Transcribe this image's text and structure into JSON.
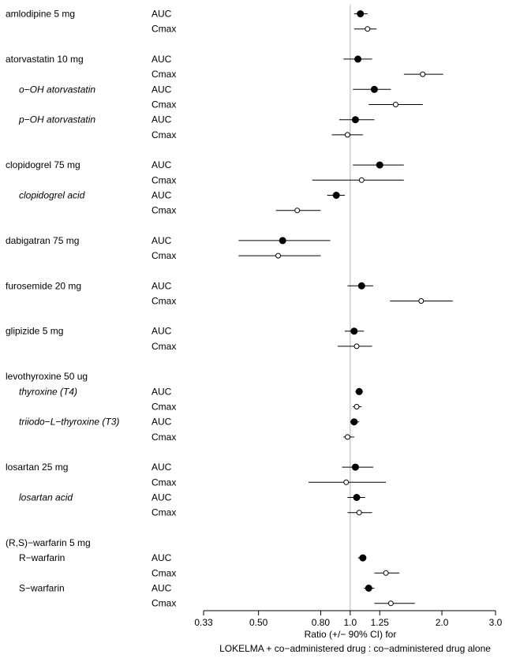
{
  "chart_data": {
    "type": "forest",
    "xscale": "log",
    "xlim": [
      0.33,
      3.0
    ],
    "xticks": [
      "0.33",
      "0.50",
      "0.80",
      "1.0",
      "1.25",
      "2.0",
      "3.0"
    ],
    "reference_line": 1.0,
    "xlabel_line1": "Ratio (+/− 90% CI) for",
    "xlabel_line2": "LOKELMA + co−administered drug : co−administered drug alone",
    "rows": [
      {
        "label": "amlodipine 5 mg",
        "italic": false,
        "indent": false,
        "metric": "AUC",
        "est": 1.08,
        "lo": 1.03,
        "hi": 1.14
      },
      {
        "label": "",
        "italic": false,
        "indent": false,
        "metric": "Cmax",
        "est": 1.14,
        "lo": 1.03,
        "hi": 1.22
      },
      {
        "label": "atorvastatin 10 mg",
        "italic": false,
        "indent": false,
        "metric": "AUC",
        "est": 1.06,
        "lo": 0.95,
        "hi": 1.18
      },
      {
        "label": "",
        "italic": false,
        "indent": false,
        "metric": "Cmax",
        "est": 1.73,
        "lo": 1.5,
        "hi": 2.02
      },
      {
        "label": "o−OH atorvastatin",
        "italic": true,
        "indent": true,
        "metric": "AUC",
        "est": 1.2,
        "lo": 1.02,
        "hi": 1.36
      },
      {
        "label": "",
        "italic": false,
        "indent": false,
        "metric": "Cmax",
        "est": 1.41,
        "lo": 1.15,
        "hi": 1.73
      },
      {
        "label": "p−OH atorvastatin",
        "italic": true,
        "indent": true,
        "metric": "AUC",
        "est": 1.04,
        "lo": 0.92,
        "hi": 1.2
      },
      {
        "label": "",
        "italic": false,
        "indent": false,
        "metric": "Cmax",
        "est": 0.98,
        "lo": 0.87,
        "hi": 1.1
      },
      {
        "label": "clopidogrel 75 mg",
        "italic": false,
        "indent": false,
        "metric": "AUC",
        "est": 1.25,
        "lo": 1.02,
        "hi": 1.5
      },
      {
        "label": "",
        "italic": false,
        "indent": false,
        "metric": "Cmax",
        "est": 1.09,
        "lo": 0.75,
        "hi": 1.5
      },
      {
        "label": "clopidogrel acid",
        "italic": true,
        "indent": true,
        "metric": "AUC",
        "est": 0.9,
        "lo": 0.84,
        "hi": 0.96
      },
      {
        "label": "",
        "italic": false,
        "indent": false,
        "metric": "Cmax",
        "est": 0.67,
        "lo": 0.57,
        "hi": 0.8
      },
      {
        "label": "dabigatran 75 mg",
        "italic": false,
        "indent": false,
        "metric": "AUC",
        "est": 0.6,
        "lo": 0.43,
        "hi": 0.86
      },
      {
        "label": "",
        "italic": false,
        "indent": false,
        "metric": "Cmax",
        "est": 0.58,
        "lo": 0.43,
        "hi": 0.8
      },
      {
        "label": "furosemide 20 mg",
        "italic": false,
        "indent": false,
        "metric": "AUC",
        "est": 1.09,
        "lo": 0.98,
        "hi": 1.19
      },
      {
        "label": "",
        "italic": false,
        "indent": false,
        "metric": "Cmax",
        "est": 1.71,
        "lo": 1.35,
        "hi": 2.17
      },
      {
        "label": "glipizide 5 mg",
        "italic": false,
        "indent": false,
        "metric": "AUC",
        "est": 1.03,
        "lo": 0.96,
        "hi": 1.11
      },
      {
        "label": "",
        "italic": false,
        "indent": false,
        "metric": "Cmax",
        "est": 1.05,
        "lo": 0.91,
        "hi": 1.18
      },
      {
        "label": "levothyroxine 50 ug",
        "italic": false,
        "indent": false,
        "metric": "",
        "est": null,
        "lo": null,
        "hi": null
      },
      {
        "label": "thyroxine (T4)",
        "italic": true,
        "indent": true,
        "metric": "AUC",
        "est": 1.07,
        "lo": 1.04,
        "hi": 1.1
      },
      {
        "label": "",
        "italic": false,
        "indent": false,
        "metric": "Cmax",
        "est": 1.05,
        "lo": 1.02,
        "hi": 1.09
      },
      {
        "label": "triiodo−L−thyroxine (T3)",
        "italic": true,
        "indent": true,
        "metric": "AUC",
        "est": 1.03,
        "lo": 1.0,
        "hi": 1.07
      },
      {
        "label": "",
        "italic": false,
        "indent": false,
        "metric": "Cmax",
        "est": 0.98,
        "lo": 0.95,
        "hi": 1.03
      },
      {
        "label": "losartan 25 mg",
        "italic": false,
        "indent": false,
        "metric": "AUC",
        "est": 1.04,
        "lo": 0.94,
        "hi": 1.19
      },
      {
        "label": "",
        "italic": false,
        "indent": false,
        "metric": "Cmax",
        "est": 0.97,
        "lo": 0.73,
        "hi": 1.31
      },
      {
        "label": "losartan acid",
        "italic": true,
        "indent": true,
        "metric": "AUC",
        "est": 1.05,
        "lo": 0.98,
        "hi": 1.12
      },
      {
        "label": "",
        "italic": false,
        "indent": false,
        "metric": "Cmax",
        "est": 1.07,
        "lo": 0.98,
        "hi": 1.18
      },
      {
        "label": "(R,S)−warfarin 5 mg",
        "italic": false,
        "indent": false,
        "metric": "",
        "est": null,
        "lo": null,
        "hi": null
      },
      {
        "label": "R−warfarin",
        "italic": false,
        "indent": true,
        "metric": "AUC",
        "est": 1.1,
        "lo": 1.06,
        "hi": 1.13
      },
      {
        "label": "",
        "italic": false,
        "indent": false,
        "metric": "Cmax",
        "est": 1.31,
        "lo": 1.2,
        "hi": 1.45
      },
      {
        "label": "S−warfarin",
        "italic": false,
        "indent": true,
        "metric": "AUC",
        "est": 1.15,
        "lo": 1.11,
        "hi": 1.2
      },
      {
        "label": "",
        "italic": false,
        "indent": false,
        "metric": "Cmax",
        "est": 1.36,
        "lo": 1.2,
        "hi": 1.63
      }
    ]
  }
}
